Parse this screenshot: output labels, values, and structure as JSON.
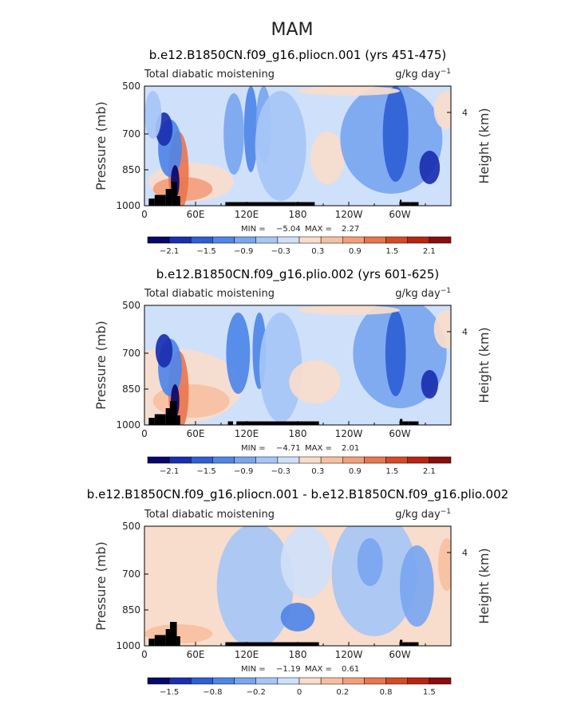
{
  "figure": {
    "season": "MAM"
  },
  "chart_data": [
    {
      "type": "heatmap",
      "title": "b.e12.B1850CN.f09_g16.pliocn.001 (yrs 451-475)",
      "subtitle_left": "Total diabatic moistening",
      "units": "g/kg day",
      "units_exp": "−1",
      "ylabel": "Pressure (mb)",
      "ylabel_right": "Height (km)",
      "yticks": [
        "500",
        "700",
        "850",
        "1000"
      ],
      "ytick_values": [
        500,
        700,
        850,
        1000
      ],
      "yticks_right": [
        "4"
      ],
      "ytick_right_values": [
        4
      ],
      "xticks": [
        "0",
        "60E",
        "120E",
        "180",
        "120W",
        "60W"
      ],
      "xtick_values": [
        0,
        60,
        120,
        180,
        240,
        300
      ],
      "xlim": [
        0,
        360
      ],
      "ylim": [
        500,
        1000
      ],
      "min_label": "MIN =",
      "min_value": "−5.04",
      "max_label": "MAX =",
      "max_value": "2.27",
      "colorbar_labels": [
        "−2.1",
        "−1.5",
        "−0.9",
        "−0.3",
        "0.3",
        "0.9",
        "1.5",
        "2.1"
      ],
      "colorbar_colors": [
        "#08086b",
        "#1a2fb0",
        "#2f5fd6",
        "#4f86e8",
        "#7aa6f0",
        "#a6c6f6",
        "#cfe0fa",
        "#f8dccc",
        "#f7bfa2",
        "#f39e7c",
        "#e9764f",
        "#d64a26",
        "#b82411",
        "#8b0d0d"
      ]
    },
    {
      "type": "heatmap",
      "title": "b.e12.B1850CN.f09_g16.plio.002 (yrs 601-625)",
      "subtitle_left": "Total diabatic moistening",
      "units": "g/kg day",
      "units_exp": "−1",
      "ylabel": "Pressure (mb)",
      "ylabel_right": "Height (km)",
      "yticks": [
        "500",
        "700",
        "850",
        "1000"
      ],
      "ytick_values": [
        500,
        700,
        850,
        1000
      ],
      "yticks_right": [
        "4"
      ],
      "ytick_right_values": [
        4
      ],
      "xticks": [
        "0",
        "60E",
        "120E",
        "180",
        "120W",
        "60W"
      ],
      "xtick_values": [
        0,
        60,
        120,
        180,
        240,
        300
      ],
      "xlim": [
        0,
        360
      ],
      "ylim": [
        500,
        1000
      ],
      "min_label": "MIN =",
      "min_value": "−4.71",
      "max_label": "MAX =",
      "max_value": "2.01",
      "colorbar_labels": [
        "−2.1",
        "−1.5",
        "−0.9",
        "−0.3",
        "0.3",
        "0.9",
        "1.5",
        "2.1"
      ],
      "colorbar_colors": [
        "#08086b",
        "#1a2fb0",
        "#2f5fd6",
        "#4f86e8",
        "#7aa6f0",
        "#a6c6f6",
        "#cfe0fa",
        "#f8dccc",
        "#f7bfa2",
        "#f39e7c",
        "#e9764f",
        "#d64a26",
        "#b82411",
        "#8b0d0d"
      ]
    },
    {
      "type": "heatmap",
      "title": "b.e12.B1850CN.f09_g16.pliocn.001 - b.e12.B1850CN.f09_g16.plio.002",
      "subtitle_left": "Total diabatic moistening",
      "units": "g/kg day",
      "units_exp": "−1",
      "ylabel": "Pressure (mb)",
      "ylabel_right": "Height (km)",
      "yticks": [
        "500",
        "700",
        "850",
        "1000"
      ],
      "ytick_values": [
        500,
        700,
        850,
        1000
      ],
      "yticks_right": [
        "4"
      ],
      "ytick_right_values": [
        4
      ],
      "xticks": [
        "0",
        "60E",
        "120E",
        "180",
        "120W",
        "60W"
      ],
      "xtick_values": [
        0,
        60,
        120,
        180,
        240,
        300
      ],
      "xlim": [
        0,
        360
      ],
      "ylim": [
        500,
        1000
      ],
      "min_label": "MIN =",
      "min_value": "−1.19",
      "max_label": "MAX =",
      "max_value": "0.61",
      "colorbar_labels": [
        "−1.5",
        "−0.8",
        "−0.2",
        "0",
        "0.2",
        "0.8",
        "1.5"
      ],
      "colorbar_colors": [
        "#08086b",
        "#1a2fb0",
        "#2f5fd6",
        "#4f86e8",
        "#7aa6f0",
        "#a6c6f6",
        "#cfe0fa",
        "#f8dccc",
        "#f7bfa2",
        "#f39e7c",
        "#e9764f",
        "#d64a26",
        "#b82411",
        "#8b0d0d"
      ]
    }
  ]
}
